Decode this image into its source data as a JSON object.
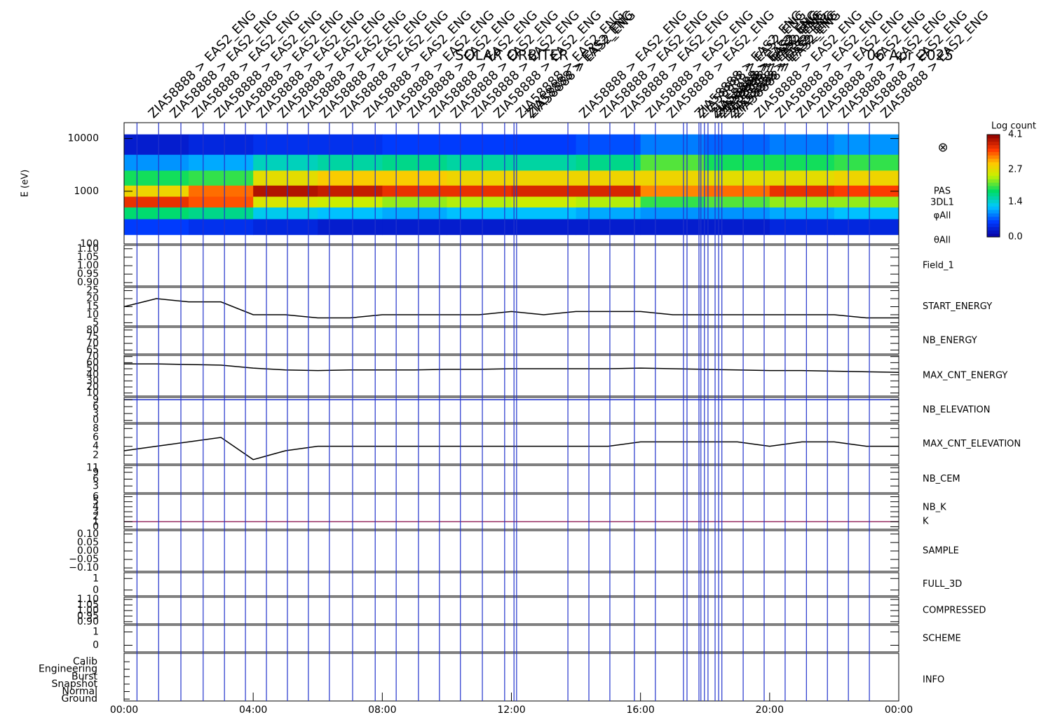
{
  "title": "SOLAR ORBITER",
  "date": "06 Apr 2025",
  "annotation": "ZIA58888 > EAS2_ENG",
  "x_axis": {
    "xlim": [
      0,
      24
    ],
    "xticks": [
      {
        "value": 0,
        "label": "00:00"
      },
      {
        "value": 4,
        "label": "04:00"
      },
      {
        "value": 8,
        "label": "08:00"
      },
      {
        "value": 12,
        "label": "12:00"
      },
      {
        "value": 16,
        "label": "16:00"
      },
      {
        "value": 20,
        "label": "20:00"
      },
      {
        "value": 24,
        "label": "00:00"
      }
    ]
  },
  "events": [
    0.4,
    1.07,
    1.76,
    2.45,
    3.11,
    3.76,
    4.41,
    5.06,
    5.71,
    6.36,
    7.08,
    7.78,
    8.43,
    9.12,
    9.77,
    10.42,
    11.1,
    11.79,
    12.08,
    12.16,
    13.75,
    14.4,
    15.05,
    15.81,
    16.46,
    17.33,
    17.44,
    17.81,
    17.87,
    17.98,
    18.09,
    18.31,
    18.42,
    18.52,
    19.18,
    19.83,
    20.48,
    21.14,
    21.79,
    22.44,
    23.09
  ],
  "chart_data": [
    {
      "type": "heatmap",
      "ylabel": "E (eV)",
      "log": true,
      "ylim": [
        100,
        20000
      ],
      "yticks": [
        100,
        1000,
        10000
      ],
      "labels": [
        "PAS",
        "3DL1",
        "φAll",
        "θAll"
      ],
      "colorbar_label": "Log count",
      "clim": [
        0,
        4.1
      ],
      "cticks": [
        {
          "value": 0,
          "label": "0.0"
        },
        1.4,
        2.7,
        4.1
      ],
      "xbins": [
        0,
        2,
        4,
        6,
        8,
        10,
        12,
        14,
        16,
        18,
        20,
        22,
        24
      ],
      "ybins": [
        150,
        300,
        500,
        800,
        1300,
        2500,
        5000,
        12000
      ],
      "z": [
        [
          0.6,
          1.8,
          3.6,
          2.8,
          1.9,
          1.0,
          0.3
        ],
        [
          0.5,
          1.7,
          3.4,
          3.3,
          2.0,
          1.1,
          0.4
        ],
        [
          0.4,
          1.3,
          2.6,
          3.9,
          2.7,
          1.5,
          0.5
        ],
        [
          0.3,
          1.2,
          2.5,
          3.8,
          2.9,
          1.6,
          0.5
        ],
        [
          0.3,
          1.1,
          2.3,
          3.6,
          2.9,
          1.7,
          0.6
        ],
        [
          0.3,
          1.2,
          2.4,
          3.6,
          2.8,
          1.6,
          0.6
        ],
        [
          0.3,
          1.2,
          2.5,
          3.7,
          2.8,
          1.6,
          0.6
        ],
        [
          0.3,
          1.1,
          2.4,
          3.7,
          2.8,
          1.7,
          0.7
        ],
        [
          0.3,
          1.0,
          2.0,
          3.2,
          2.8,
          2.1,
          0.9
        ],
        [
          0.3,
          1.0,
          2.1,
          3.3,
          2.7,
          1.9,
          0.8
        ],
        [
          0.4,
          1.1,
          2.3,
          3.6,
          2.7,
          1.9,
          0.9
        ],
        [
          0.4,
          1.2,
          2.3,
          3.5,
          2.8,
          2.0,
          1.0
        ]
      ]
    },
    {
      "type": "empty",
      "label": "Field_1",
      "label_color": "#2233cc",
      "ylim": [
        0.88,
        1.12
      ],
      "yticks": [
        {
          "value": 0.9,
          "label": "0.90"
        },
        {
          "value": 0.95,
          "label": "0.95"
        },
        {
          "value": 1,
          "label": "1.00"
        },
        {
          "value": 1.05,
          "label": "1.05"
        },
        {
          "value": 1.1,
          "label": "1.10"
        }
      ]
    },
    {
      "type": "line",
      "ylim": [
        3,
        27
      ],
      "yticks": [
        5,
        10,
        15,
        20,
        25
      ],
      "series": [
        {
          "name": "START_ENERGY",
          "color": "#000000",
          "x": [
            0,
            1,
            2,
            3,
            4,
            5,
            6,
            7,
            8,
            9,
            10,
            11,
            12,
            13,
            14,
            15,
            16,
            17,
            18,
            19,
            20,
            21,
            22,
            23,
            24
          ],
          "values": [
            15,
            20,
            18,
            18,
            10,
            10,
            8,
            8,
            10,
            10,
            10,
            10,
            12,
            10,
            12,
            12,
            12,
            10,
            10,
            10,
            10,
            10,
            10,
            8,
            8
          ]
        }
      ]
    },
    {
      "type": "empty",
      "label": "NB_ENERGY",
      "label_color": "#2233cc",
      "ylim": [
        62,
        82
      ],
      "yticks": [
        65,
        70,
        75,
        80
      ]
    },
    {
      "type": "line",
      "ylim": [
        5,
        72
      ],
      "yticks": [
        10,
        20,
        30,
        40,
        50,
        60,
        70
      ],
      "series": [
        {
          "name": "MAX_CNT_ENERGY",
          "color": "#000000",
          "x": [
            0,
            1,
            2,
            3,
            4,
            5,
            6,
            7,
            8,
            9,
            10,
            11,
            12,
            13,
            14,
            15,
            16,
            17,
            18,
            19,
            20,
            21,
            22,
            23,
            24
          ],
          "values": [
            58,
            58,
            57,
            56,
            51,
            48,
            47,
            48,
            48,
            48,
            49,
            49,
            50,
            50,
            50,
            50,
            51,
            50,
            49,
            48,
            47,
            47,
            46,
            45,
            44
          ]
        }
      ]
    },
    {
      "type": "line",
      "ylim": [
        -1,
        10
      ],
      "yticks": [
        0,
        3,
        6,
        9
      ],
      "series": [
        {
          "name": "NB_ELEVATION",
          "color": "#2233cc",
          "x": [
            0,
            24
          ],
          "values": [
            9,
            9
          ]
        }
      ]
    },
    {
      "type": "line",
      "ylim": [
        0,
        9
      ],
      "yticks": [
        2,
        4,
        6,
        8
      ],
      "series": [
        {
          "name": "MAX_CNT_ELEVATION",
          "color": "#000000",
          "x": [
            0,
            1,
            2,
            3,
            4,
            5,
            6,
            7,
            8,
            9,
            10,
            11,
            12,
            13,
            14,
            15,
            16,
            17,
            18,
            19,
            20,
            21,
            22,
            23,
            24
          ],
          "values": [
            3,
            4,
            5,
            6,
            1,
            3,
            4,
            4,
            4,
            4,
            4,
            4,
            4,
            4,
            4,
            4,
            5,
            5,
            5,
            5,
            4,
            5,
            5,
            4,
            4
          ]
        }
      ]
    },
    {
      "type": "empty",
      "label": "NB_CEM",
      "label_color": "#2233cc",
      "ylim": [
        0,
        12
      ],
      "yticks": [
        3,
        6,
        9,
        11
      ]
    },
    {
      "type": "line",
      "label": "NB_K",
      "label_color": "#cc2222",
      "ylim": [
        -0.5,
        6.5
      ],
      "yticks": [
        0,
        1,
        2,
        3,
        4,
        5,
        6
      ],
      "series": [
        {
          "name": "K",
          "color": "#993366",
          "x": [
            0,
            24
          ],
          "values": [
            1,
            1
          ]
        }
      ]
    },
    {
      "type": "empty",
      "label": "SAMPLE",
      "label_color": "#2233cc",
      "ylim": [
        -0.12,
        0.12
      ],
      "yticks": [
        {
          "value": -0.1,
          "label": "−0.10"
        },
        {
          "value": -0.05,
          "label": "−0.05"
        },
        {
          "value": 0,
          "label": "0.00"
        },
        {
          "value": 0.05,
          "label": "0.05"
        },
        {
          "value": 0.1,
          "label": "0.10"
        }
      ]
    },
    {
      "type": "empty",
      "label": "FULL_3D",
      "label_color": "#2233cc",
      "ylim": [
        -0.5,
        1.5
      ],
      "yticks": [
        0,
        1
      ]
    },
    {
      "type": "empty",
      "label": "COMPRESSED",
      "label_color": "#000000",
      "ylim": [
        0.88,
        1.12
      ],
      "yticks": [
        {
          "value": 0.9,
          "label": "0.90"
        },
        {
          "value": 0.95,
          "label": "0.95"
        },
        {
          "value": 1,
          "label": "1.00"
        },
        {
          "value": 1.05,
          "label": "1.05"
        },
        {
          "value": 1.1,
          "label": "1.10"
        }
      ]
    },
    {
      "type": "empty",
      "label": "SCHEME",
      "label_color": "#000000",
      "ylim": [
        -0.5,
        1.5
      ],
      "yticks": [
        0,
        1
      ]
    },
    {
      "type": "categories",
      "label": "INFO",
      "label_color": "#000000",
      "categories": [
        "Calib",
        "Engineering",
        "Burst",
        "Snapshot",
        "Normal",
        "Ground"
      ]
    }
  ]
}
